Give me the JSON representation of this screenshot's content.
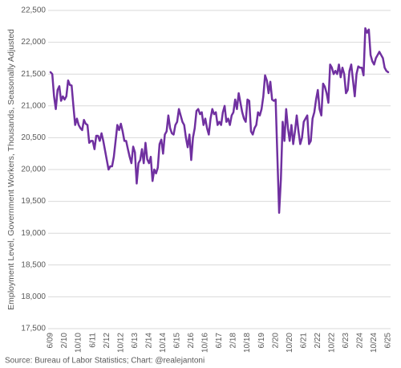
{
  "chart_data": {
    "type": "line",
    "y_label": "Employment Level, Government Workers, Thousands, Seasonally Adjusted",
    "source": "Source: Bureau of Labor Statistics; Chart: @realejantoni",
    "color": "#7030a0",
    "grid": true,
    "ylim": [
      17500,
      22500
    ],
    "yticks": [
      {
        "value": 17500,
        "label": "17,500"
      },
      {
        "value": 18000,
        "label": "18,000"
      },
      {
        "value": 18500,
        "label": "18,500"
      },
      {
        "value": 19000,
        "label": "19,000"
      },
      {
        "value": 19500,
        "label": "19,500"
      },
      {
        "value": 20000,
        "label": "20,000"
      },
      {
        "value": 20500,
        "label": "20,500"
      },
      {
        "value": 21000,
        "label": "21,000"
      },
      {
        "value": 21500,
        "label": "21,500"
      },
      {
        "value": 22000,
        "label": "22,000"
      },
      {
        "value": 22500,
        "label": "22,500"
      }
    ],
    "categories": [
      "6/09",
      null,
      null,
      null,
      null,
      null,
      null,
      null,
      "2/10",
      null,
      null,
      null,
      null,
      null,
      null,
      null,
      "10/10",
      null,
      null,
      null,
      null,
      null,
      null,
      null,
      "6/11",
      null,
      null,
      null,
      null,
      null,
      null,
      null,
      "2/12",
      null,
      null,
      null,
      null,
      null,
      null,
      null,
      "10/12",
      null,
      null,
      null,
      null,
      null,
      null,
      null,
      "6/13",
      null,
      null,
      null,
      null,
      null,
      null,
      null,
      "2/14",
      null,
      null,
      null,
      null,
      null,
      null,
      null,
      "10/14",
      null,
      null,
      null,
      null,
      null,
      null,
      null,
      "6/15",
      null,
      null,
      null,
      null,
      null,
      null,
      null,
      "2/16",
      null,
      null,
      null,
      null,
      null,
      null,
      null,
      "10/16",
      null,
      null,
      null,
      null,
      null,
      null,
      null,
      "6/17",
      null,
      null,
      null,
      null,
      null,
      null,
      null,
      "2/18",
      null,
      null,
      null,
      null,
      null,
      null,
      null,
      "10/18",
      null,
      null,
      null,
      null,
      null,
      null,
      null,
      "6/19",
      null,
      null,
      null,
      null,
      null,
      null,
      null,
      "2/20",
      null,
      null,
      null,
      null,
      null,
      null,
      null,
      "10/20",
      null,
      null,
      null,
      null,
      null,
      null,
      null,
      "6/21",
      null,
      null,
      null,
      null,
      null,
      null,
      null,
      "2/22",
      null,
      null,
      null,
      null,
      null,
      null,
      null,
      "10/22",
      null,
      null,
      null,
      null,
      null,
      null,
      null,
      "6/23",
      null,
      null,
      null,
      null,
      null,
      null,
      null,
      "2/24",
      null,
      null,
      null,
      null,
      null,
      null,
      null,
      "10/24",
      null,
      null,
      null,
      null,
      null,
      null,
      null,
      "6/25"
    ],
    "values": [
      21530,
      21500,
      21150,
      20950,
      21250,
      21310,
      21080,
      21150,
      21100,
      21150,
      21400,
      21330,
      21320,
      21000,
      20700,
      20800,
      20700,
      20650,
      20620,
      20780,
      20720,
      20700,
      20420,
      20450,
      20450,
      20320,
      20530,
      20530,
      20450,
      20570,
      20450,
      20300,
      20150,
      20000,
      20050,
      20050,
      20200,
      20450,
      20700,
      20620,
      20720,
      20600,
      20450,
      20450,
      20320,
      20200,
      20100,
      20360,
      20270,
      19780,
      20100,
      20150,
      20320,
      20100,
      20420,
      20160,
      20100,
      20200,
      19820,
      20000,
      19940,
      20030,
      20400,
      20470,
      20250,
      20550,
      20600,
      20850,
      20650,
      20570,
      20550,
      20700,
      20750,
      20950,
      20850,
      20750,
      20700,
      20500,
      20350,
      20550,
      20150,
      20500,
      20650,
      20920,
      20950,
      20870,
      20900,
      20700,
      20800,
      20650,
      20550,
      20800,
      20950,
      20870,
      20900,
      20700,
      20750,
      20700,
      20900,
      21000,
      20750,
      20800,
      20700,
      20850,
      20900,
      21100,
      20950,
      21200,
      21050,
      20900,
      20800,
      20750,
      21100,
      21080,
      20600,
      20550,
      20650,
      20700,
      20900,
      20850,
      20950,
      21150,
      21480,
      21400,
      21200,
      21380,
      21100,
      21080,
      21100,
      20200,
      19320,
      19850,
      20750,
      20450,
      20950,
      20650,
      20450,
      20700,
      20400,
      20600,
      20850,
      20600,
      20400,
      20500,
      20750,
      20800,
      20850,
      20400,
      20450,
      20800,
      20900,
      21100,
      21250,
      20950,
      20850,
      21350,
      21300,
      21200,
      21050,
      21650,
      21600,
      21500,
      21550,
      21500,
      21650,
      21450,
      21600,
      21500,
      21200,
      21250,
      21550,
      21650,
      21400,
      21150,
      21500,
      21620,
      21600,
      21600,
      21480,
      22220,
      22150,
      22200,
      21800,
      21700,
      21650,
      21750,
      21800,
      21850,
      21800,
      21750,
      21600,
      21550,
      21530
    ]
  }
}
